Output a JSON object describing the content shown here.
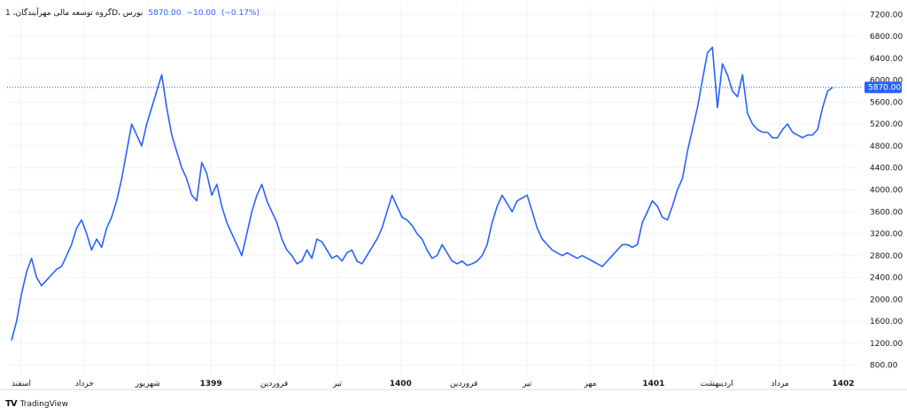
{
  "legend": {
    "symbol": "گروه توسعه مالی مهرآیندگان، 1D، بورس",
    "price": "5870.00",
    "change": "−10.00",
    "change_pct": "(−0.17%)"
  },
  "price_badge": "5870.00",
  "brand": {
    "logo": "TV",
    "name": "TradingView"
  },
  "colors": {
    "line": "#2962ff",
    "badge": "#2962ff",
    "grid": "#f0f3fa"
  },
  "chart_data": {
    "type": "line",
    "y_ticks": [
      800,
      1200,
      1600,
      2000,
      2400,
      2800,
      3200,
      3600,
      4000,
      4400,
      4800,
      5200,
      5600,
      6000,
      6400,
      6800,
      7200
    ],
    "ylim": [
      600,
      7400
    ],
    "y_tick_labels": [
      "800.00",
      "1200.00",
      "1600.00",
      "2000.00",
      "2400.00",
      "2800.00",
      "3200.00",
      "3600.00",
      "4000.00",
      "4400.00",
      "4800.00",
      "5200.00",
      "5600.00",
      "6000.00",
      "6400.00",
      "6800.00",
      "7200.00"
    ],
    "x_labels": [
      {
        "label": "اسفند",
        "bold": false
      },
      {
        "label": "خرداد",
        "bold": false
      },
      {
        "label": "شهریور",
        "bold": false
      },
      {
        "label": "1399",
        "bold": true
      },
      {
        "label": "فروردین",
        "bold": false
      },
      {
        "label": "تیر",
        "bold": false
      },
      {
        "label": "1400",
        "bold": true
      },
      {
        "label": "فروردین",
        "bold": false
      },
      {
        "label": "تیر",
        "bold": false
      },
      {
        "label": "مهر",
        "bold": false
      },
      {
        "label": "1401",
        "bold": true
      },
      {
        "label": "اردیبهشت",
        "bold": false
      },
      {
        "label": "مرداد",
        "bold": false
      },
      {
        "label": "1402",
        "bold": true
      }
    ],
    "last_value": 5870,
    "series": [
      {
        "values": [
          1250,
          1600,
          2100,
          2500,
          2750,
          2400,
          2250,
          2350,
          2450,
          2550,
          2600,
          2800,
          3000,
          3300,
          3450,
          3200,
          2900,
          3100,
          2950,
          3300,
          3500,
          3800,
          4200,
          4700,
          5200,
          5000,
          4800,
          5200,
          5500,
          5800,
          6100,
          5500,
          5000,
          4700,
          4400,
          4200,
          3900,
          3800,
          4500,
          4300,
          3900,
          4100,
          3700,
          3400,
          3200,
          3000,
          2800,
          3200,
          3600,
          3900,
          4100,
          3800,
          3600,
          3400,
          3100,
          2900,
          2800,
          2650,
          2700,
          2900,
          2750,
          3100,
          3050,
          2900,
          2750,
          2800,
          2700,
          2850,
          2900,
          2700,
          2650,
          2800,
          2950,
          3100,
          3300,
          3600,
          3900,
          3700,
          3500,
          3450,
          3350,
          3200,
          3100,
          2900,
          2750,
          2800,
          3000,
          2850,
          2700,
          2650,
          2700,
          2620,
          2650,
          2700,
          2800,
          3000,
          3400,
          3700,
          3900,
          3750,
          3600,
          3800,
          3850,
          3900,
          3600,
          3300,
          3100,
          3000,
          2900,
          2850,
          2800,
          2850,
          2800,
          2750,
          2800,
          2750,
          2700,
          2650,
          2600,
          2700,
          2800,
          2900,
          3000,
          3000,
          2950,
          3000,
          3400,
          3600,
          3800,
          3700,
          3500,
          3450,
          3700,
          4000,
          4200,
          4700,
          5100,
          5500,
          6000,
          6500,
          6600,
          5500,
          6300,
          6100,
          5800,
          5700,
          6100,
          5400,
          5200,
          5100,
          5050,
          5050,
          4950,
          4950,
          5100,
          5200,
          5050,
          5000,
          4950,
          5000,
          5000,
          5100,
          5500,
          5800,
          5870
        ]
      }
    ]
  }
}
